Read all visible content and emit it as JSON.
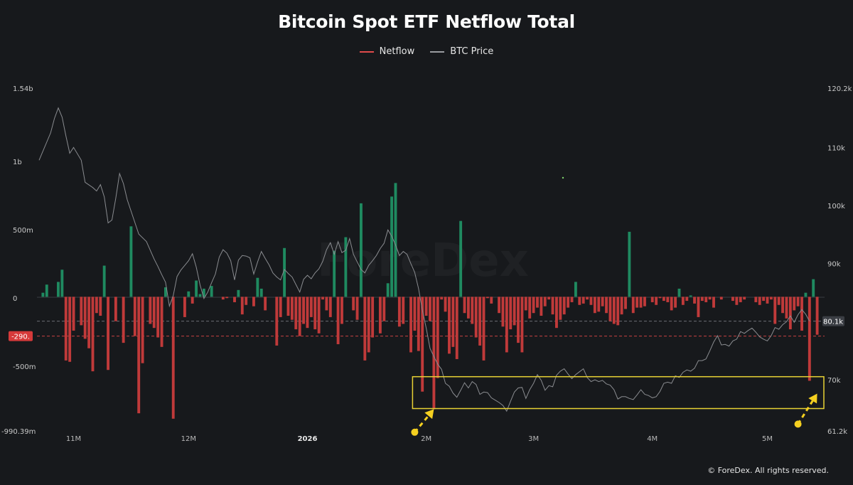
{
  "chart_data": {
    "type": "bar",
    "title": "Bitcoin Spot ETF Netflow Total",
    "legend": [
      "Netflow",
      "BTC Price"
    ],
    "legend_position": "top-center",
    "colors": {
      "background": "#17191c",
      "inflow": "#1f8a60",
      "outflow": "#c03a3a",
      "price_line": "#8a8c90",
      "highlight": "#e8d234",
      "arrow": "#f5d020",
      "ref_label_bg": "#d63a3a",
      "price_label_bg": "#3b3e44"
    },
    "left_axis": {
      "unit": "USD",
      "ylim": [
        -990390000,
        1540000000
      ],
      "tick_values": [
        1540000000,
        1000000000,
        500000000,
        0,
        -500000000,
        -990390000
      ],
      "tick_labels": [
        "1.54b",
        "1b",
        "500m",
        "0",
        "-500m",
        "-990.39m"
      ]
    },
    "right_axis": {
      "unit": "USD",
      "ylim": [
        61200,
        120200
      ],
      "tick_values": [
        120200,
        110000,
        100000,
        90000,
        80100,
        70000,
        61200
      ],
      "tick_labels": [
        "120.2k",
        "110k",
        "100k",
        "90k",
        "80.1k",
        "70k",
        "61.2k"
      ]
    },
    "x_axis": {
      "ticks": [
        {
          "label": "11M",
          "i": 9,
          "bold": false
        },
        {
          "label": "12M",
          "i": 39,
          "bold": false
        },
        {
          "label": "2026",
          "i": 70,
          "bold": true
        },
        {
          "label": "2M",
          "i": 101,
          "bold": false
        },
        {
          "label": "3M",
          "i": 129,
          "bold": false
        },
        {
          "label": "4M",
          "i": 160,
          "bold": false
        },
        {
          "label": "5M",
          "i": 190,
          "bold": false
        }
      ]
    },
    "x_count": 205,
    "netflow_bars": [
      [
        1,
        30
      ],
      [
        2,
        90
      ],
      [
        5,
        110
      ],
      [
        6,
        200
      ],
      [
        7,
        -470
      ],
      [
        8,
        -480
      ],
      [
        9,
        -250
      ],
      [
        11,
        -210
      ],
      [
        12,
        -310
      ],
      [
        13,
        -380
      ],
      [
        14,
        -550
      ],
      [
        15,
        -120
      ],
      [
        16,
        -140
      ],
      [
        17,
        230
      ],
      [
        18,
        -540
      ],
      [
        20,
        -180
      ],
      [
        22,
        -340
      ],
      [
        24,
        520
      ],
      [
        25,
        -290
      ],
      [
        26,
        -860
      ],
      [
        27,
        -490
      ],
      [
        29,
        -200
      ],
      [
        30,
        -230
      ],
      [
        31,
        -300
      ],
      [
        32,
        -370
      ],
      [
        33,
        70
      ],
      [
        35,
        -900
      ],
      [
        38,
        -150
      ],
      [
        39,
        40
      ],
      [
        40,
        -50
      ],
      [
        41,
        120
      ],
      [
        42,
        20
      ],
      [
        43,
        60
      ],
      [
        45,
        80
      ],
      [
        48,
        -20
      ],
      [
        49,
        -10
      ],
      [
        51,
        -40
      ],
      [
        52,
        50
      ],
      [
        53,
        -130
      ],
      [
        54,
        -60
      ],
      [
        56,
        -70
      ],
      [
        57,
        140
      ],
      [
        58,
        60
      ],
      [
        59,
        -100
      ],
      [
        62,
        -360
      ],
      [
        63,
        -150
      ],
      [
        64,
        360
      ],
      [
        65,
        -140
      ],
      [
        66,
        -170
      ],
      [
        67,
        -240
      ],
      [
        68,
        -290
      ],
      [
        69,
        -200
      ],
      [
        70,
        -230
      ],
      [
        71,
        -150
      ],
      [
        72,
        -240
      ],
      [
        73,
        -270
      ],
      [
        74,
        -20
      ],
      [
        75,
        -100
      ],
      [
        76,
        -150
      ],
      [
        77,
        340
      ],
      [
        78,
        -350
      ],
      [
        79,
        -200
      ],
      [
        80,
        440
      ],
      [
        82,
        -100
      ],
      [
        83,
        -170
      ],
      [
        84,
        690
      ],
      [
        85,
        -470
      ],
      [
        86,
        -410
      ],
      [
        87,
        -300
      ],
      [
        89,
        -270
      ],
      [
        90,
        -180
      ],
      [
        91,
        100
      ],
      [
        92,
        740
      ],
      [
        93,
        840
      ],
      [
        94,
        -220
      ],
      [
        95,
        -200
      ],
      [
        97,
        -410
      ],
      [
        98,
        -250
      ],
      [
        99,
        -400
      ],
      [
        100,
        -700
      ],
      [
        101,
        -140
      ],
      [
        102,
        -180
      ],
      [
        103,
        -830
      ],
      [
        104,
        -600
      ],
      [
        105,
        -20
      ],
      [
        106,
        -110
      ],
      [
        107,
        -420
      ],
      [
        108,
        -370
      ],
      [
        109,
        -460
      ],
      [
        110,
        560
      ],
      [
        111,
        -120
      ],
      [
        112,
        -160
      ],
      [
        113,
        -200
      ],
      [
        114,
        -300
      ],
      [
        115,
        -360
      ],
      [
        116,
        -470
      ],
      [
        117,
        -10
      ],
      [
        118,
        -50
      ],
      [
        120,
        -120
      ],
      [
        121,
        -220
      ],
      [
        122,
        -410
      ],
      [
        123,
        -240
      ],
      [
        124,
        -210
      ],
      [
        125,
        -340
      ],
      [
        126,
        -410
      ],
      [
        127,
        -100
      ],
      [
        128,
        -160
      ],
      [
        129,
        -120
      ],
      [
        130,
        -80
      ],
      [
        131,
        -140
      ],
      [
        132,
        -70
      ],
      [
        133,
        -20
      ],
      [
        134,
        -130
      ],
      [
        135,
        -230
      ],
      [
        136,
        -170
      ],
      [
        137,
        -130
      ],
      [
        138,
        -80
      ],
      [
        139,
        -40
      ],
      [
        140,
        110
      ],
      [
        141,
        -60
      ],
      [
        142,
        -50
      ],
      [
        143,
        -20
      ],
      [
        144,
        -60
      ],
      [
        145,
        -120
      ],
      [
        146,
        -110
      ],
      [
        147,
        -70
      ],
      [
        148,
        -120
      ],
      [
        149,
        -180
      ],
      [
        150,
        -200
      ],
      [
        151,
        -210
      ],
      [
        152,
        -130
      ],
      [
        153,
        -90
      ],
      [
        154,
        480
      ],
      [
        155,
        -120
      ],
      [
        156,
        -80
      ],
      [
        157,
        -80
      ],
      [
        158,
        -70
      ],
      [
        160,
        -40
      ],
      [
        161,
        -60
      ],
      [
        162,
        -10
      ],
      [
        163,
        -30
      ],
      [
        164,
        -40
      ],
      [
        165,
        -100
      ],
      [
        166,
        -80
      ],
      [
        167,
        60
      ],
      [
        168,
        -60
      ],
      [
        169,
        -30
      ],
      [
        170,
        10
      ],
      [
        171,
        -50
      ],
      [
        172,
        -150
      ],
      [
        173,
        -30
      ],
      [
        174,
        -40
      ],
      [
        175,
        -20
      ],
      [
        176,
        -80
      ],
      [
        178,
        -20
      ],
      [
        181,
        -30
      ],
      [
        182,
        -60
      ],
      [
        183,
        -40
      ],
      [
        184,
        -20
      ],
      [
        187,
        -40
      ],
      [
        188,
        -60
      ],
      [
        189,
        -30
      ],
      [
        190,
        -50
      ],
      [
        191,
        -20
      ],
      [
        192,
        -200
      ],
      [
        193,
        -60
      ],
      [
        194,
        -120
      ],
      [
        195,
        -160
      ],
      [
        196,
        -240
      ],
      [
        197,
        -100
      ],
      [
        198,
        -70
      ],
      [
        199,
        -250
      ],
      [
        200,
        30
      ],
      [
        201,
        -620
      ],
      [
        202,
        130
      ],
      [
        203,
        -280
      ]
    ],
    "price_line": [
      [
        0,
        107800
      ],
      [
        3,
        112500
      ],
      [
        4,
        115000
      ],
      [
        5,
        116800
      ],
      [
        6,
        115200
      ],
      [
        7,
        112000
      ],
      [
        8,
        109000
      ],
      [
        9,
        110000
      ],
      [
        11,
        107800
      ],
      [
        12,
        104000
      ],
      [
        14,
        103100
      ],
      [
        15,
        102500
      ],
      [
        16,
        103600
      ],
      [
        17,
        101500
      ],
      [
        18,
        97000
      ],
      [
        19,
        97500
      ],
      [
        20,
        101200
      ],
      [
        21,
        105500
      ],
      [
        22,
        103800
      ],
      [
        23,
        101000
      ],
      [
        26,
        95100
      ],
      [
        28,
        93800
      ],
      [
        29,
        92300
      ],
      [
        30,
        90800
      ],
      [
        31,
        89500
      ],
      [
        32,
        88100
      ],
      [
        33,
        86800
      ],
      [
        34,
        82700
      ],
      [
        35,
        84500
      ],
      [
        36,
        87800
      ],
      [
        37,
        88900
      ],
      [
        38,
        89700
      ],
      [
        39,
        90500
      ],
      [
        40,
        91700
      ],
      [
        41,
        89400
      ],
      [
        42,
        86300
      ],
      [
        43,
        84000
      ],
      [
        44,
        85100
      ],
      [
        45,
        86700
      ],
      [
        46,
        88200
      ],
      [
        47,
        91100
      ],
      [
        48,
        92400
      ],
      [
        49,
        91800
      ],
      [
        50,
        90500
      ],
      [
        51,
        87200
      ],
      [
        52,
        90600
      ],
      [
        53,
        91400
      ],
      [
        54,
        91300
      ],
      [
        55,
        91000
      ],
      [
        56,
        88200
      ],
      [
        57,
        90300
      ],
      [
        58,
        92100
      ],
      [
        59,
        90900
      ],
      [
        60,
        89800
      ],
      [
        61,
        88400
      ],
      [
        62,
        87700
      ],
      [
        63,
        87200
      ],
      [
        64,
        89000
      ],
      [
        65,
        88300
      ],
      [
        66,
        87700
      ],
      [
        67,
        86400
      ],
      [
        68,
        85100
      ],
      [
        69,
        87300
      ],
      [
        70,
        88000
      ],
      [
        71,
        87400
      ],
      [
        72,
        88400
      ],
      [
        73,
        89100
      ],
      [
        74,
        90400
      ],
      [
        75,
        92400
      ],
      [
        76,
        93600
      ],
      [
        77,
        91600
      ],
      [
        78,
        93800
      ],
      [
        79,
        91900
      ],
      [
        80,
        92300
      ],
      [
        81,
        94300
      ],
      [
        82,
        91600
      ],
      [
        83,
        90300
      ],
      [
        84,
        89000
      ],
      [
        85,
        88400
      ],
      [
        86,
        89700
      ],
      [
        87,
        90500
      ],
      [
        88,
        91400
      ],
      [
        89,
        92600
      ],
      [
        90,
        93500
      ],
      [
        91,
        95800
      ],
      [
        92,
        94700
      ],
      [
        93,
        93200
      ],
      [
        94,
        91400
      ],
      [
        95,
        92100
      ],
      [
        96,
        91600
      ],
      [
        97,
        90000
      ],
      [
        98,
        88500
      ],
      [
        99,
        85700
      ],
      [
        100,
        82000
      ],
      [
        101,
        78900
      ],
      [
        102,
        75400
      ],
      [
        103,
        74000
      ],
      [
        104,
        72700
      ],
      [
        105,
        71800
      ],
      [
        106,
        69400
      ],
      [
        107,
        68900
      ],
      [
        108,
        67700
      ],
      [
        109,
        67000
      ],
      [
        110,
        68200
      ],
      [
        111,
        69500
      ],
      [
        112,
        68600
      ],
      [
        113,
        69700
      ],
      [
        114,
        69200
      ],
      [
        115,
        67500
      ],
      [
        116,
        67900
      ],
      [
        117,
        67800
      ],
      [
        118,
        66900
      ],
      [
        119,
        66500
      ],
      [
        120,
        66100
      ],
      [
        121,
        65600
      ],
      [
        122,
        64600
      ],
      [
        123,
        66300
      ],
      [
        124,
        67900
      ],
      [
        125,
        68600
      ],
      [
        126,
        68700
      ],
      [
        127,
        66800
      ],
      [
        128,
        68300
      ],
      [
        129,
        69400
      ],
      [
        130,
        70900
      ],
      [
        131,
        69900
      ],
      [
        132,
        68200
      ],
      [
        133,
        69000
      ],
      [
        134,
        68800
      ],
      [
        135,
        70800
      ],
      [
        136,
        71500
      ],
      [
        137,
        71900
      ],
      [
        138,
        71000
      ],
      [
        139,
        70200
      ],
      [
        140,
        70900
      ],
      [
        141,
        71400
      ],
      [
        142,
        71900
      ],
      [
        143,
        70400
      ],
      [
        144,
        69700
      ],
      [
        145,
        70000
      ],
      [
        146,
        69700
      ],
      [
        147,
        69900
      ],
      [
        148,
        69300
      ],
      [
        149,
        69100
      ],
      [
        150,
        68300
      ],
      [
        151,
        66700
      ],
      [
        152,
        67100
      ],
      [
        153,
        67100
      ],
      [
        154,
        66800
      ],
      [
        155,
        66600
      ],
      [
        156,
        67400
      ],
      [
        157,
        68300
      ],
      [
        158,
        67500
      ],
      [
        159,
        67300
      ],
      [
        160,
        66900
      ],
      [
        161,
        67100
      ],
      [
        162,
        68000
      ],
      [
        163,
        69400
      ],
      [
        164,
        69600
      ],
      [
        165,
        69400
      ],
      [
        166,
        70700
      ],
      [
        167,
        70400
      ],
      [
        168,
        71300
      ],
      [
        169,
        71700
      ],
      [
        170,
        71500
      ],
      [
        171,
        72000
      ],
      [
        172,
        73300
      ],
      [
        173,
        73300
      ],
      [
        174,
        73600
      ],
      [
        175,
        75000
      ],
      [
        176,
        76500
      ],
      [
        177,
        77600
      ],
      [
        178,
        76000
      ],
      [
        179,
        76100
      ],
      [
        180,
        75800
      ],
      [
        181,
        76700
      ],
      [
        182,
        77000
      ],
      [
        183,
        78300
      ],
      [
        184,
        78000
      ],
      [
        185,
        78500
      ],
      [
        186,
        78900
      ],
      [
        187,
        78200
      ],
      [
        188,
        77400
      ],
      [
        189,
        77000
      ],
      [
        190,
        76700
      ],
      [
        191,
        77600
      ],
      [
        192,
        79000
      ],
      [
        193,
        78700
      ],
      [
        194,
        79500
      ],
      [
        195,
        80000
      ],
      [
        196,
        81000
      ],
      [
        197,
        79900
      ],
      [
        198,
        81200
      ],
      [
        199,
        82100
      ],
      [
        200,
        81300
      ],
      [
        201,
        80100
      ]
    ],
    "reference_lines": [
      {
        "axis": "left",
        "value": -290000000,
        "label": "-290.",
        "style": "dashed-red"
      },
      {
        "axis": "right",
        "value": 80100,
        "label": "80.1k",
        "style": "dashed-grey"
      }
    ],
    "highlight_box": {
      "x_from": 98,
      "x_to": 204,
      "y_from": -825000000,
      "y_to": -590000000,
      "axis": "left"
    },
    "arrows": [
      {
        "from": [
          98,
          -1000000000
        ],
        "to": [
          103,
          -830000000
        ]
      },
      {
        "from": [
          198,
          -940000000
        ],
        "to": [
          203,
          -715000000
        ]
      }
    ],
    "grid": false,
    "watermark": "ForeDex",
    "copyright": "© ForeDex. All rights reserved."
  }
}
